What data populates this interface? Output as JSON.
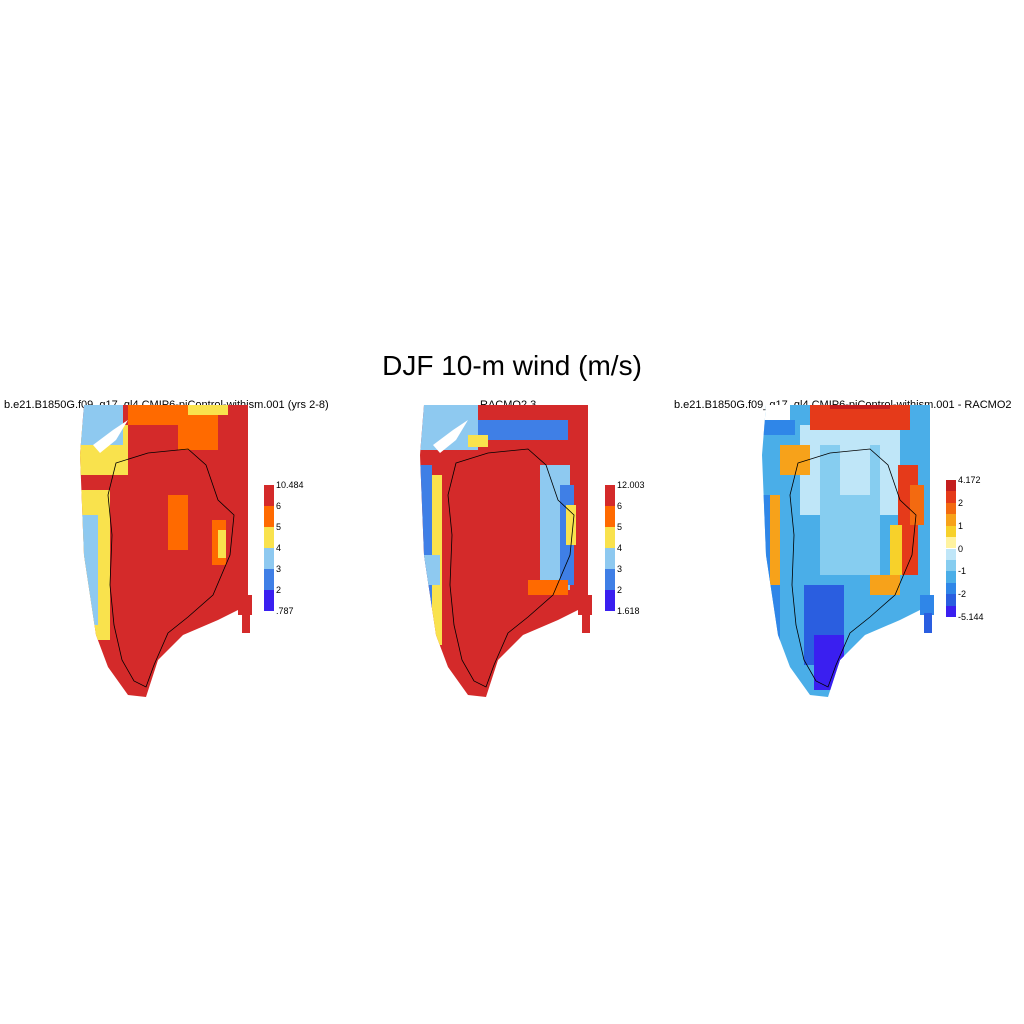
{
  "title": "DJF 10-m wind (m/s)",
  "panels": [
    {
      "id": "model",
      "title": "b.e21.B1850G.f09_g17_gl4.CMIP6-piControl-withism.001 (yrs 2-8)",
      "colorbar": {
        "colors": [
          "#3a1ff0",
          "#3f7fe6",
          "#8ec9f0",
          "#f9e24d",
          "#ff6a00",
          "#d42a2a"
        ],
        "labels": [
          ".787",
          "2",
          "3",
          "4",
          "5",
          "6",
          "10.484"
        ]
      }
    },
    {
      "id": "racmo",
      "title": "RACMO2.3",
      "colorbar": {
        "colors": [
          "#3a1ff0",
          "#3f7fe6",
          "#8ec9f0",
          "#f9e24d",
          "#ff6a00",
          "#d42a2a"
        ],
        "labels": [
          "1.618",
          "2",
          "3",
          "4",
          "5",
          "6",
          "12.003"
        ]
      }
    },
    {
      "id": "difference",
      "title": "b.e21.B1850G.f09_g17_gl4.CMIP6-piControl-withism.001 - RACMO2",
      "colorbar": {
        "colors": [
          "#3a1ff0",
          "#2a5ee0",
          "#2f86e8",
          "#4aaee8",
          "#86cdf0",
          "#bfe6f8",
          "#fff3a0",
          "#f7d12a",
          "#f7a21a",
          "#f36a10",
          "#e53a1a",
          "#c41e1e"
        ],
        "labels": [
          "-5.144",
          "-2",
          "-1",
          "0",
          "1",
          "2",
          "4.172"
        ]
      }
    }
  ]
}
